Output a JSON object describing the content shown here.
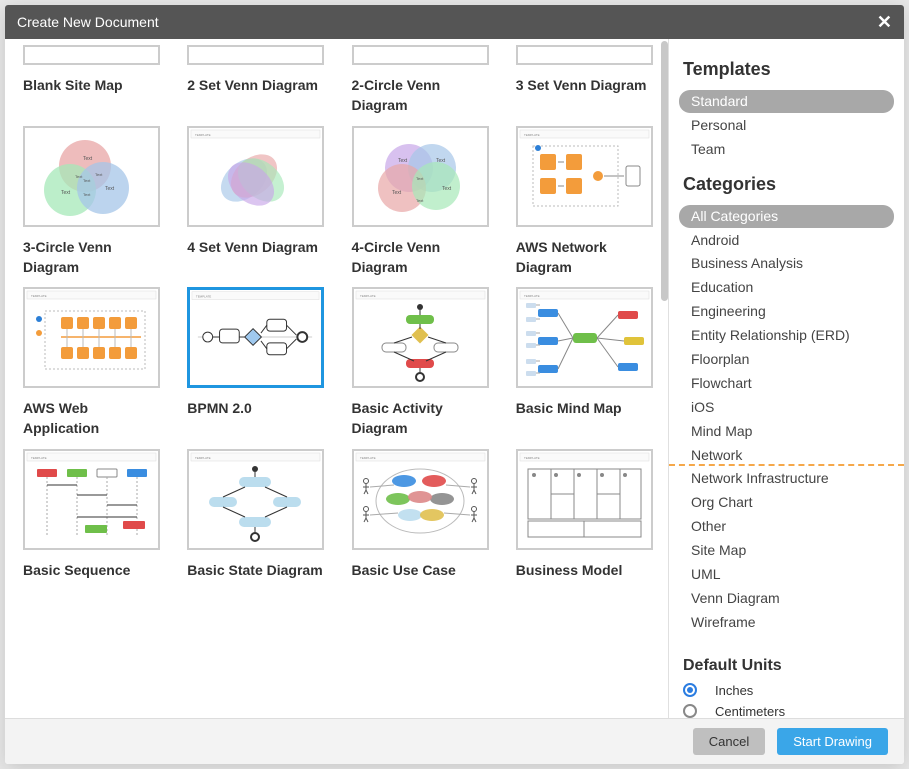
{
  "dialog": {
    "title": "Create New Document"
  },
  "cards": [
    {
      "label": "Blank Site Map",
      "thumb": "short",
      "selected": false
    },
    {
      "label": "2 Set Venn Diagram",
      "thumb": "short",
      "selected": false
    },
    {
      "label": "2-Circle Venn Diagram",
      "thumb": "short",
      "selected": false
    },
    {
      "label": "3 Set Venn Diagram",
      "thumb": "short",
      "selected": false
    },
    {
      "label": "3-Circle Venn Diagram",
      "thumb": "venn3",
      "selected": false
    },
    {
      "label": "4 Set Venn Diagram",
      "thumb": "venn4b",
      "selected": false
    },
    {
      "label": "4-Circle Venn Diagram",
      "thumb": "venn4",
      "selected": false
    },
    {
      "label": "AWS Network Diagram",
      "thumb": "aws1",
      "selected": false
    },
    {
      "label": "AWS Web Application",
      "thumb": "aws2",
      "selected": false
    },
    {
      "label": "BPMN 2.0",
      "thumb": "bpmn",
      "selected": true
    },
    {
      "label": "Basic Activity Diagram",
      "thumb": "activity",
      "selected": false
    },
    {
      "label": "Basic Mind Map",
      "thumb": "mindmap",
      "selected": false
    },
    {
      "label": "Basic Sequence",
      "thumb": "sequence",
      "selected": false
    },
    {
      "label": "Basic State Diagram",
      "thumb": "state",
      "selected": false
    },
    {
      "label": "Basic Use Case",
      "thumb": "usecase",
      "selected": false
    },
    {
      "label": "Business Model",
      "thumb": "biz",
      "selected": false
    }
  ],
  "sidebar": {
    "templates_heading": "Templates",
    "template_groups": [
      {
        "label": "Standard",
        "active": true
      },
      {
        "label": "Personal",
        "active": false
      },
      {
        "label": "Team",
        "active": false
      }
    ],
    "categories_heading": "Categories",
    "categories": [
      {
        "label": "All Categories",
        "active": true
      },
      {
        "label": "Android",
        "active": false
      },
      {
        "label": "Business Analysis",
        "active": false
      },
      {
        "label": "Education",
        "active": false
      },
      {
        "label": "Engineering",
        "active": false
      },
      {
        "label": "Entity Relationship (ERD)",
        "active": false
      },
      {
        "label": "Floorplan",
        "active": false
      },
      {
        "label": "Flowchart",
        "active": false
      },
      {
        "label": "iOS",
        "active": false
      },
      {
        "label": "Mind Map",
        "active": false
      },
      {
        "label": "Network",
        "active": false
      },
      {
        "label": "Network Infrastructure",
        "active": false
      },
      {
        "label": "Org Chart",
        "active": false
      },
      {
        "label": "Other",
        "active": false
      },
      {
        "label": "Site Map",
        "active": false
      },
      {
        "label": "UML",
        "active": false
      },
      {
        "label": "Venn Diagram",
        "active": false
      },
      {
        "label": "Wireframe",
        "active": false
      }
    ],
    "units_heading": "Default Units",
    "units": [
      {
        "label": "Inches",
        "checked": true
      },
      {
        "label": "Centimeters",
        "checked": false
      }
    ]
  },
  "footer": {
    "cancel": "Cancel",
    "start": "Start Drawing"
  },
  "colors": {
    "header_bg": "#555555",
    "selected_border": "#1f96e0",
    "pill_active_bg": "#a8a8a8",
    "primary_btn": "#3aa6e8",
    "secondary_btn": "#bfbfbf",
    "dash": "#f5a84a",
    "venn_red": "#e8a6a6",
    "venn_blue": "#a6c6e8",
    "venn_green": "#a6e8b8",
    "venn_purple": "#c7a6e8",
    "aws_orange": "#f39c3b",
    "aws_blue": "#2c7fd6",
    "mind_green": "#6fbf4a",
    "mind_blue": "#3a8de0",
    "mind_red": "#e04a4a",
    "mind_yellow": "#e0c33a"
  }
}
